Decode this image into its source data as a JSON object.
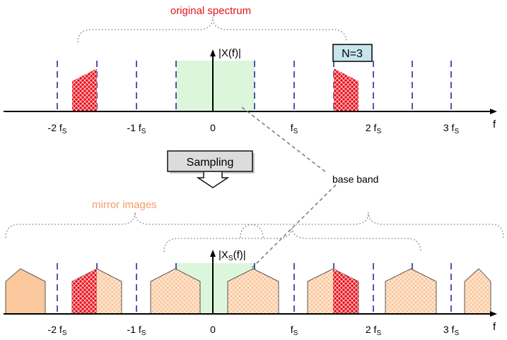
{
  "labels": {
    "original_spectrum": "original spectrum",
    "mirror_images": "mirror images",
    "base_band": "base band",
    "sampling_button": "Sampling",
    "n_box": "N=3",
    "f_axis": "f",
    "top_y_label": "|X(f)|",
    "bottom_y_label": {
      "pre": "|X",
      "sub": "S",
      "post": "(f)|"
    }
  },
  "ticks": [
    {
      "pre": "-2 f",
      "sub": "S"
    },
    {
      "pre": "-1 f",
      "sub": "S"
    },
    {
      "pre": "0",
      "sub": ""
    },
    {
      "pre": "f",
      "sub": "S"
    },
    {
      "pre": "2 f",
      "sub": "S"
    },
    {
      "pre": "3 f",
      "sub": "S"
    }
  ],
  "colors": {
    "red_text": "#e3131b",
    "mirror_text": "#f79c6a",
    "band_fill": "#dcf6dc",
    "dash": "#2a2a9c",
    "red_fill": "#e8101a",
    "mirror_fill": "#fac89c",
    "n_box_fill": "#c6e6ee",
    "button_fill": "#dcdcdc"
  }
}
